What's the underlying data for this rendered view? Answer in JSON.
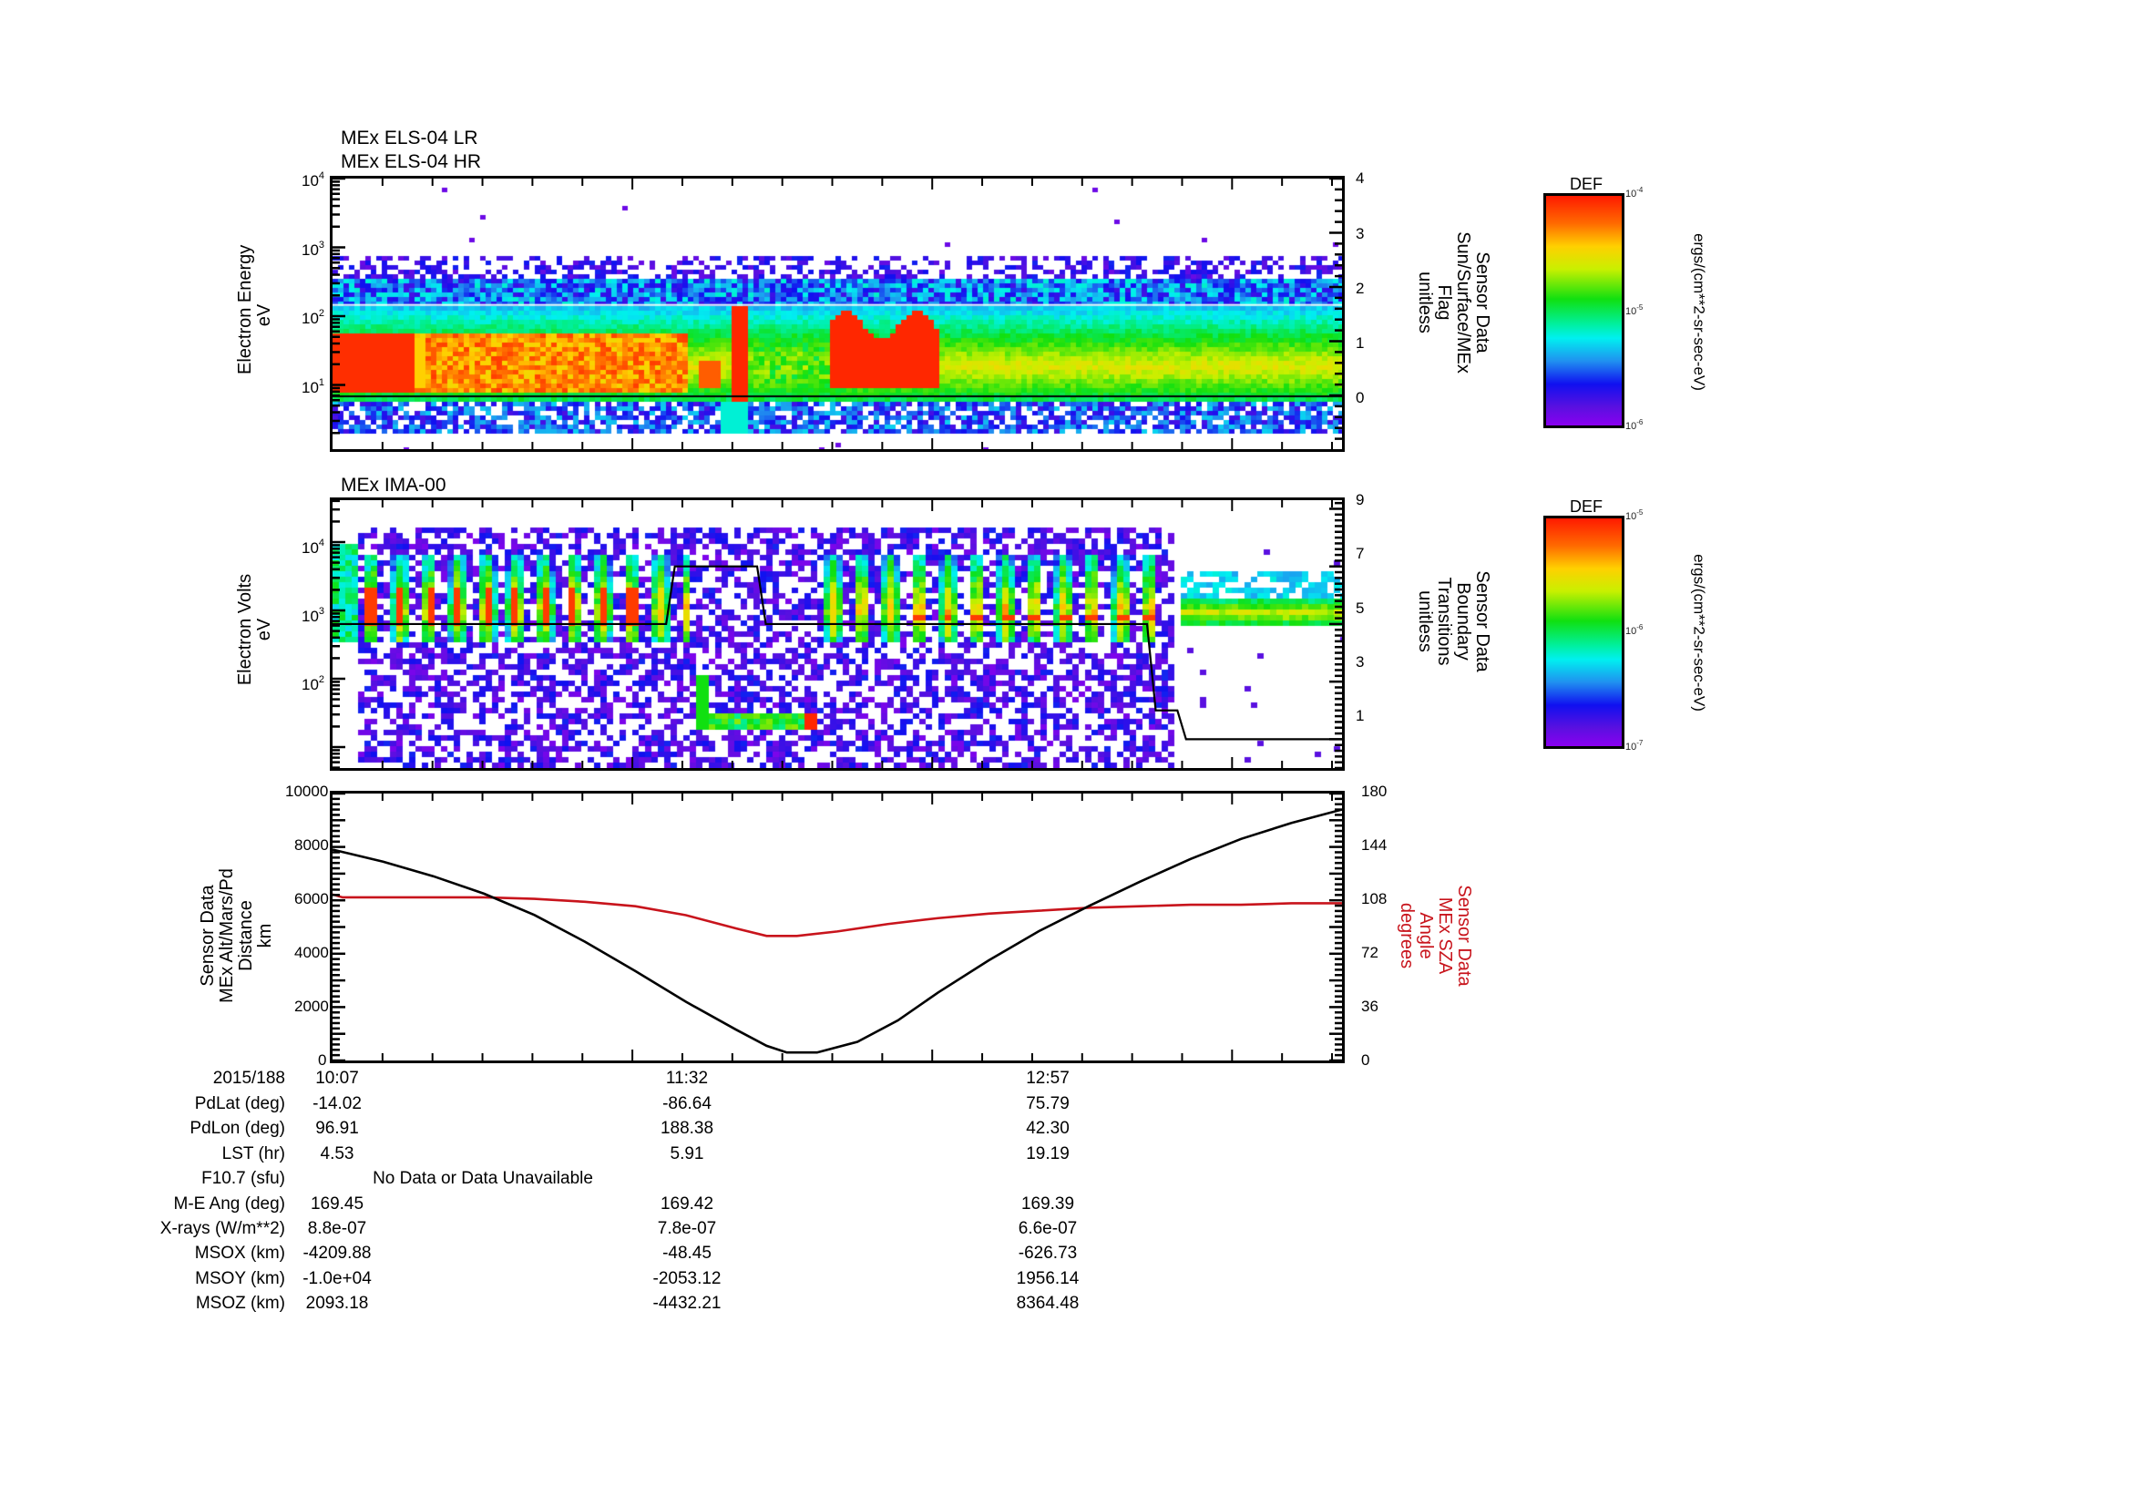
{
  "panels": {
    "els": {
      "titles": [
        "MEx ELS-04 LR",
        "MEx ELS-04 HR"
      ],
      "y_label": [
        "Electron Energy",
        "eV"
      ],
      "y_ticks": [
        {
          "base": "10",
          "exp": "4"
        },
        {
          "base": "10",
          "exp": "3"
        },
        {
          "base": "10",
          "exp": "2"
        },
        {
          "base": "10",
          "exp": "1"
        }
      ],
      "right_label": [
        "Sensor Data",
        "Sun/Surface/MEx",
        "Flag",
        "unitless"
      ],
      "right_ticks": [
        "4",
        "3",
        "2",
        "1",
        "0"
      ],
      "colorbar": {
        "title": "DEF",
        "ticks": [
          {
            "base": "10",
            "exp": "-4"
          },
          {
            "base": "10",
            "exp": "-5"
          },
          {
            "base": "10",
            "exp": "-6"
          }
        ],
        "units": "ergs/(cm**2-sr-sec-eV)"
      }
    },
    "ima": {
      "titles": [
        "MEx IMA-00"
      ],
      "y_label": [
        "Electron Volts",
        "eV"
      ],
      "y_ticks": [
        {
          "base": "10",
          "exp": "4"
        },
        {
          "base": "10",
          "exp": "3"
        },
        {
          "base": "10",
          "exp": "2"
        }
      ],
      "right_label": [
        "Sensor Data",
        "Boundary",
        "Transitions",
        "unitless"
      ],
      "right_ticks": [
        "9",
        "7",
        "5",
        "3",
        "1"
      ],
      "colorbar": {
        "title": "DEF",
        "ticks": [
          {
            "base": "10",
            "exp": "-5"
          },
          {
            "base": "10",
            "exp": "-6"
          },
          {
            "base": "10",
            "exp": "-7"
          }
        ],
        "units": "ergs/(cm**2-sr-sec-eV)"
      }
    },
    "orbit": {
      "y_label": [
        "Sensor Data",
        "MEx Alt/Mars/Pd",
        "Distance",
        "km"
      ],
      "y_ticks": [
        "10000",
        "8000",
        "6000",
        "4000",
        "2000",
        "0"
      ],
      "right_label": [
        "Sensor Data",
        "MEx SZA",
        "Angle",
        "degrees"
      ],
      "right_ticks": [
        "180",
        "144",
        "108",
        "72",
        "36",
        "0"
      ]
    }
  },
  "ephemeris": {
    "date_label": "2015/188",
    "times": [
      "10:07",
      "11:32",
      "12:57"
    ],
    "rows": [
      {
        "label": "PdLat (deg)",
        "values": [
          "-14.02",
          "-86.64",
          "75.79"
        ]
      },
      {
        "label": "PdLon (deg)",
        "values": [
          "96.91",
          "188.38",
          "42.30"
        ]
      },
      {
        "label": "LST (hr)",
        "values": [
          "4.53",
          "5.91",
          "19.19"
        ]
      },
      {
        "label": "F10.7 (sfu)",
        "note": "No Data or Data Unavailable"
      },
      {
        "label": "M-E Ang (deg)",
        "values": [
          "169.45",
          "169.42",
          "169.39"
        ]
      },
      {
        "label": "X-rays (W/m**2)",
        "values": [
          "8.8e-07",
          "7.8e-07",
          "6.6e-07"
        ]
      },
      {
        "label": "MSOX (km)",
        "values": [
          "-4209.88",
          "-48.45",
          "-626.73"
        ]
      },
      {
        "label": "MSOY (km)",
        "values": [
          "-1.0e+04",
          "-2053.12",
          "1956.14"
        ]
      },
      {
        "label": "MSOZ (km)",
        "values": [
          "2093.18",
          "-4432.21",
          "8364.48"
        ]
      }
    ]
  },
  "colors": {
    "altitude_line": "#000000",
    "sza_line": "#c8141c",
    "frame": "#000000"
  },
  "chart_data": [
    {
      "type": "heatmap",
      "title": "MEx ELS-04 LR / MEx ELS-04 HR",
      "xlabel": "Time (2015/188)",
      "ylabel": "Electron Energy (eV)",
      "yscale": "log",
      "ylim": [
        2,
        10000
      ],
      "x_tick_labels": [
        "10:07",
        "11:32",
        "12:57"
      ],
      "colorbar": {
        "label": "DEF ergs/(cm**2-sr-sec-eV)",
        "range": [
          1e-06,
          0.0001
        ],
        "scale": "log"
      },
      "overlay": {
        "name": "Sun/Surface/MEx Flag",
        "ylim": [
          -0.9,
          4
        ],
        "ticks": [
          0,
          1,
          2,
          3,
          4
        ],
        "value": 0
      },
      "features": [
        {
          "time_range": [
            "10:07",
            "11:25"
          ],
          "peak_energy_eV": 20,
          "intensity": "high (red) early, orange/yellow later"
        },
        {
          "time_range": [
            "11:26",
            "11:33"
          ],
          "peak_energy_eV": 40,
          "intensity": "high (red) burst"
        },
        {
          "time_range": [
            "11:48",
            "12:20"
          ],
          "peak_energy_eV": 25,
          "intensity": "high (red) burst"
        },
        {
          "time_range": [
            "12:20",
            "14:00"
          ],
          "peak_energy_eV": 20,
          "intensity": "moderate (green/yellow)"
        }
      ]
    },
    {
      "type": "heatmap",
      "title": "MEx IMA-00",
      "xlabel": "Time (2015/188)",
      "ylabel": "Electron Volts (eV)",
      "yscale": "log",
      "ylim": [
        15,
        40000
      ],
      "x_tick_labels": [
        "10:07",
        "11:32",
        "12:57"
      ],
      "colorbar": {
        "label": "DEF ergs/(cm**2-sr-sec-eV)",
        "range": [
          1e-07,
          1e-05
        ],
        "scale": "log"
      },
      "overlay": {
        "name": "Boundary Transitions",
        "ylim": [
          0,
          9
        ],
        "ticks": [
          1,
          3,
          5,
          7,
          9
        ],
        "series": [
          {
            "time": "10:07",
            "value": 5
          },
          {
            "time": "11:24",
            "value": 5
          },
          {
            "time": "11:26",
            "value": 7
          },
          {
            "time": "11:45",
            "value": 7
          },
          {
            "time": "11:47",
            "value": 5
          },
          {
            "time": "13:15",
            "value": 5
          },
          {
            "time": "13:17",
            "value": 2
          },
          {
            "time": "13:22",
            "value": 2
          },
          {
            "time": "13:24",
            "value": 1
          },
          {
            "time": "14:00",
            "value": 1
          }
        ]
      }
    },
    {
      "type": "line",
      "xlabel": "Time (2015/188)",
      "x_tick_labels": [
        "10:07",
        "11:32",
        "12:57"
      ],
      "series": [
        {
          "name": "MEx Alt/Mars/Pd Distance (km)",
          "axis": "left",
          "ylim": [
            0,
            10000
          ],
          "x_frac": [
            0.0,
            0.05,
            0.1,
            0.15,
            0.2,
            0.25,
            0.3,
            0.35,
            0.4,
            0.43,
            0.45,
            0.48,
            0.52,
            0.56,
            0.6,
            0.65,
            0.7,
            0.75,
            0.8,
            0.85,
            0.9,
            0.95,
            1.0
          ],
          "values": [
            7900,
            7450,
            6900,
            6250,
            5450,
            4450,
            3350,
            2200,
            1150,
            550,
            300,
            300,
            700,
            1500,
            2550,
            3750,
            4850,
            5800,
            6700,
            7550,
            8300,
            8900,
            9400
          ]
        },
        {
          "name": "MEx SZA Angle (degrees)",
          "axis": "right",
          "ylim": [
            0,
            180
          ],
          "x_frac": [
            0.0,
            0.01,
            0.1,
            0.15,
            0.2,
            0.25,
            0.3,
            0.35,
            0.4,
            0.43,
            0.46,
            0.5,
            0.55,
            0.6,
            0.65,
            0.7,
            0.75,
            0.8,
            0.85,
            0.9,
            0.95,
            1.0
          ],
          "values": [
            112,
            110,
            110,
            110,
            109,
            107,
            104,
            98,
            89,
            84,
            84,
            87,
            92,
            96,
            99,
            101,
            103,
            104,
            105,
            105,
            106,
            106
          ]
        }
      ]
    }
  ]
}
